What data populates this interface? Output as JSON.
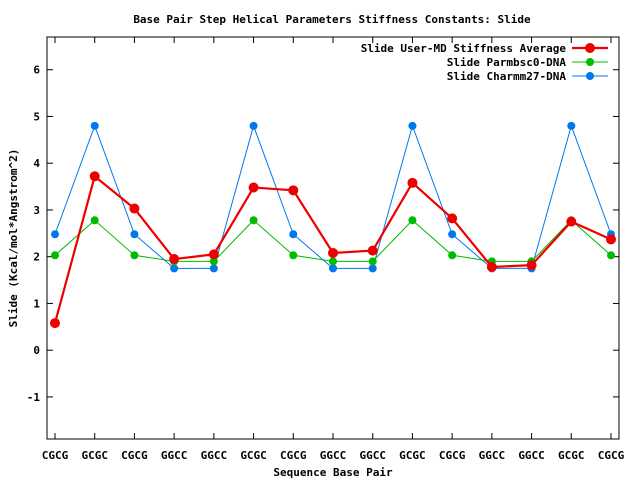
{
  "chart_data": {
    "type": "line",
    "title": "Base Pair Step Helical Parameters Stiffness Constants: Slide",
    "xlabel": "Sequence Base Pair",
    "ylabel": "Slide (Kcal/mol*Angstrom^2)",
    "categories": [
      "CGCG",
      "GCGC",
      "CGCG",
      "GGCC",
      "GGCC",
      "GCGC",
      "CGCG",
      "GGCC",
      "GGCC",
      "GCGC",
      "CGCG",
      "GGCC",
      "GGCC",
      "GCGC",
      "CGCG"
    ],
    "ylim": [
      -1.9,
      6.7
    ],
    "yticks": [
      -1,
      0,
      1,
      2,
      3,
      4,
      5,
      6
    ],
    "legend_position": "top-right",
    "series": [
      {
        "name": "Slide User-MD Stiffness Average",
        "color": "#ee0000",
        "line_width": 2.2,
        "marker_radius": 5,
        "values": [
          0.58,
          3.72,
          3.03,
          1.95,
          2.05,
          3.48,
          3.42,
          2.08,
          2.13,
          3.58,
          2.82,
          1.78,
          1.82,
          2.75,
          2.37
        ]
      },
      {
        "name": "Slide Parmbsc0-DNA",
        "color": "#00bb00",
        "line_width": 1,
        "marker_radius": 4,
        "values": [
          2.03,
          2.78,
          2.03,
          1.9,
          1.9,
          2.78,
          2.03,
          1.9,
          1.9,
          2.78,
          2.03,
          1.9,
          1.9,
          2.78,
          2.03
        ]
      },
      {
        "name": "Slide Charmm27-DNA",
        "color": "#0077ee",
        "line_width": 1,
        "marker_radius": 4,
        "values": [
          2.48,
          4.8,
          2.48,
          1.75,
          1.75,
          4.8,
          2.48,
          1.75,
          1.75,
          4.8,
          2.48,
          1.75,
          1.75,
          4.8,
          2.48
        ]
      }
    ]
  }
}
